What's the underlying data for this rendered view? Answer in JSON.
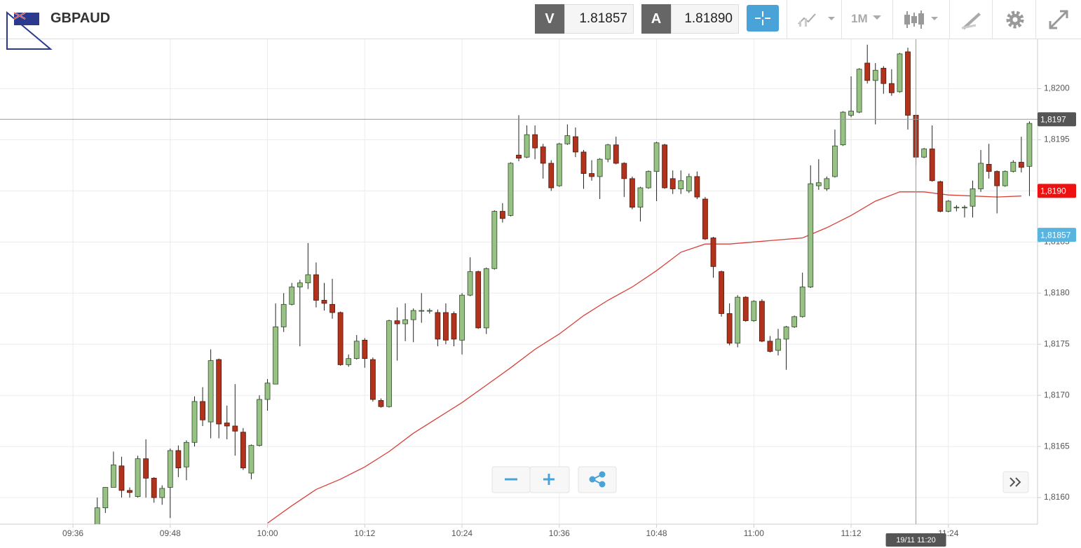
{
  "toolbar": {
    "symbol": "GBPAUD",
    "sell_label": "V",
    "sell_price": "1.81857",
    "buy_label": "A",
    "buy_price": "1.81890",
    "timeframe": "1M"
  },
  "chart_data": {
    "type": "candlestick",
    "x": [
      "09:39",
      "09:40",
      "09:41",
      "09:42",
      "09:43",
      "09:44",
      "09:45",
      "09:46",
      "09:47",
      "09:48",
      "09:49",
      "09:50",
      "09:51",
      "09:52",
      "09:53",
      "09:54",
      "09:55",
      "09:56",
      "09:57",
      "09:58",
      "09:59",
      "10:00",
      "10:01",
      "10:02",
      "10:03",
      "10:04",
      "10:05",
      "10:06",
      "10:07",
      "10:08",
      "10:09",
      "10:10",
      "10:11",
      "10:12",
      "10:13",
      "10:14",
      "10:15",
      "10:16",
      "10:17",
      "10:18",
      "10:19",
      "10:20",
      "10:21",
      "10:22",
      "10:23",
      "10:24",
      "10:25",
      "10:26",
      "10:27",
      "10:28",
      "10:29",
      "10:30",
      "10:31",
      "10:32",
      "10:33",
      "10:34",
      "10:35",
      "10:36",
      "10:37",
      "10:38",
      "10:39",
      "10:40",
      "10:41",
      "10:42",
      "10:43",
      "10:44",
      "10:45",
      "10:46",
      "10:47",
      "10:48",
      "10:49",
      "10:50",
      "10:51",
      "10:52",
      "10:53",
      "10:54",
      "10:55",
      "10:56",
      "10:57",
      "10:58",
      "10:59",
      "11:00",
      "11:01",
      "11:02",
      "11:03",
      "11:04",
      "11:05",
      "11:06",
      "11:07",
      "11:08",
      "11:09",
      "11:10",
      "11:11",
      "11:12",
      "11:13",
      "11:14",
      "11:15",
      "11:16",
      "11:17",
      "11:18",
      "11:19",
      "11:20",
      "11:21",
      "11:22",
      "11:23",
      "11:24",
      "11:25",
      "11:26",
      "11:27",
      "11:28",
      "11:29",
      "11:30",
      "11:31",
      "11:32",
      "11:33",
      "11:34"
    ],
    "open": [
      1.8157,
      1.8159,
      1.8161,
      1.81631,
      1.81607,
      1.81601,
      1.81638,
      1.81619,
      1.816,
      1.8161,
      1.81646,
      1.8163,
      1.81654,
      1.81694,
      1.81674,
      1.81735,
      1.81673,
      1.8167,
      1.81664,
      1.81624,
      1.81651,
      1.81696,
      1.81711,
      1.81767,
      1.81789,
      1.81806,
      1.8181,
      1.81818,
      1.81793,
      1.81789,
      1.81781,
      1.8173,
      1.81736,
      1.81754,
      1.81735,
      1.81695,
      1.81689,
      1.81773,
      1.8177,
      1.81774,
      1.81783,
      1.81783,
      1.81781,
      1.81781,
      1.8178,
      1.81754,
      1.81798,
      1.81821,
      1.81766,
      1.81824,
      1.8188,
      1.81876,
      1.81935,
      1.81933,
      1.81955,
      1.81943,
      1.81927,
      1.81905,
      1.81946,
      1.81953,
      1.81938,
      1.81917,
      1.81914,
      1.81931,
      1.81945,
      1.81927,
      1.81912,
      1.81884,
      1.81903,
      1.81919,
      1.81945,
      1.81912,
      1.81902,
      1.819,
      1.81914,
      1.81892,
      1.81854,
      1.81821,
      1.8178,
      1.81751,
      1.81796,
      1.81773,
      1.81792,
      1.81753,
      1.81744,
      1.81755,
      1.81767,
      1.81777,
      1.81806,
      1.81905,
      1.81902,
      1.81914,
      1.81945,
      1.81974,
      1.81977,
      1.82025,
      1.82008,
      1.8202,
      1.82005,
      1.81997,
      1.82036,
      1.81974,
      1.81933,
      1.81941,
      1.81909,
      1.8188,
      1.81884,
      1.81884,
      1.81885,
      1.81902,
      1.81926,
      1.81919,
      1.81905,
      1.81919,
      1.81928,
      1.81924
    ],
    "high": [
      1.816,
      1.8161,
      1.81645,
      1.8164,
      1.8161,
      1.81641,
      1.81657,
      1.8162,
      1.81612,
      1.81648,
      1.81651,
      1.81656,
      1.81699,
      1.81708,
      1.81745,
      1.81736,
      1.8169,
      1.81711,
      1.81668,
      1.81652,
      1.817,
      1.81716,
      1.8179,
      1.818,
      1.8181,
      1.81813,
      1.81849,
      1.8183,
      1.8181,
      1.81814,
      1.81782,
      1.8174,
      1.81759,
      1.81756,
      1.81737,
      1.81697,
      1.81774,
      1.81786,
      1.8179,
      1.81785,
      1.818,
      1.81785,
      1.81784,
      1.8179,
      1.81782,
      1.818,
      1.81835,
      1.81822,
      1.81825,
      1.81881,
      1.81888,
      1.81928,
      1.81974,
      1.81964,
      1.81964,
      1.81946,
      1.8193,
      1.81947,
      1.81965,
      1.81962,
      1.8194,
      1.8193,
      1.81932,
      1.81946,
      1.81953,
      1.81928,
      1.81914,
      1.81904,
      1.8192,
      1.81948,
      1.81946,
      1.8192,
      1.8192,
      1.81917,
      1.81919,
      1.81894,
      1.81855,
      1.81822,
      1.8179,
      1.81798,
      1.81797,
      1.81793,
      1.81794,
      1.81758,
      1.81765,
      1.81768,
      1.81778,
      1.8182,
      1.81925,
      1.81931,
      1.81914,
      1.8196,
      1.81978,
      1.82012,
      1.8202,
      1.82043,
      1.82025,
      1.82022,
      1.82019,
      1.82035,
      1.8204,
      1.81975,
      1.81942,
      1.81964,
      1.8191,
      1.81891,
      1.81886,
      1.81886,
      1.8191,
      1.8194,
      1.81946,
      1.8192,
      1.8192,
      1.8193,
      1.81953,
      1.81968
    ],
    "low": [
      1.8157,
      1.81585,
      1.8161,
      1.816,
      1.816,
      1.816,
      1.816,
      1.81595,
      1.81593,
      1.8158,
      1.8162,
      1.81617,
      1.8165,
      1.8167,
      1.81658,
      1.81658,
      1.81657,
      1.81641,
      1.81627,
      1.81618,
      1.8165,
      1.81685,
      1.81711,
      1.81762,
      1.81788,
      1.81748,
      1.81804,
      1.81786,
      1.81783,
      1.81775,
      1.81729,
      1.81728,
      1.81735,
      1.81727,
      1.81694,
      1.81688,
      1.81688,
      1.81734,
      1.81753,
      1.81752,
      1.81771,
      1.8178,
      1.81748,
      1.8175,
      1.81748,
      1.8174,
      1.81797,
      1.81765,
      1.8176,
      1.81823,
      1.81869,
      1.81875,
      1.81929,
      1.81932,
      1.81931,
      1.81912,
      1.819,
      1.81904,
      1.81945,
      1.81933,
      1.81902,
      1.8191,
      1.81892,
      1.81928,
      1.81926,
      1.81894,
      1.81882,
      1.8187,
      1.81902,
      1.8189,
      1.81902,
      1.81897,
      1.81897,
      1.81898,
      1.81892,
      1.81852,
      1.81815,
      1.81777,
      1.81749,
      1.81747,
      1.81772,
      1.81772,
      1.81752,
      1.81742,
      1.81739,
      1.81725,
      1.81766,
      1.81776,
      1.81805,
      1.81901,
      1.819,
      1.81913,
      1.81944,
      1.81972,
      1.81976,
      1.82005,
      1.81965,
      1.81995,
      1.81993,
      1.81996,
      1.8196,
      1.81925,
      1.81932,
      1.81909,
      1.81879,
      1.81879,
      1.8188,
      1.81874,
      1.81874,
      1.81899,
      1.81912,
      1.81878,
      1.81904,
      1.81918,
      1.81918,
      1.81895
    ],
    "close": [
      1.8159,
      1.8161,
      1.81632,
      1.81607,
      1.81605,
      1.81638,
      1.81619,
      1.816,
      1.81609,
      1.81646,
      1.81629,
      1.81654,
      1.81694,
      1.81676,
      1.81734,
      1.81672,
      1.8167,
      1.81665,
      1.81629,
      1.81651,
      1.81696,
      1.81712,
      1.81767,
      1.81789,
      1.81806,
      1.8181,
      1.81818,
      1.81793,
      1.8179,
      1.81781,
      1.8173,
      1.81736,
      1.81753,
      1.81736,
      1.81696,
      1.81689,
      1.81773,
      1.8177,
      1.81774,
      1.81783,
      1.81783,
      1.81783,
      1.81755,
      1.81754,
      1.81755,
      1.81798,
      1.81821,
      1.81766,
      1.81824,
      1.8188,
      1.81873,
      1.81927,
      1.81932,
      1.81955,
      1.81942,
      1.81927,
      1.81903,
      1.81946,
      1.81954,
      1.81938,
      1.81917,
      1.81914,
      1.81931,
      1.81945,
      1.81927,
      1.81912,
      1.81884,
      1.81903,
      1.81919,
      1.81947,
      1.81903,
      1.81902,
      1.8191,
      1.81914,
      1.81894,
      1.81853,
      1.81826,
      1.8178,
      1.81751,
      1.81796,
      1.81773,
      1.81792,
      1.81753,
      1.81743,
      1.81755,
      1.81767,
      1.81777,
      1.81806,
      1.81907,
      1.81908,
      1.81912,
      1.81944,
      1.81977,
      1.81978,
      1.82019,
      1.82008,
      1.82018,
      1.82005,
      1.81996,
      1.82034,
      1.81974,
      1.81933,
      1.81941,
      1.8191,
      1.8188,
      1.8189,
      1.81884,
      1.81884,
      1.81902,
      1.81927,
      1.81919,
      1.81905,
      1.81919,
      1.81928,
      1.81923,
      1.81966
    ],
    "up_color": "#97c283",
    "down_color": "#b3321b",
    "overlays": [
      {
        "color": "#d9403a",
        "x": [
          "10:00",
          "10:03",
          "10:06",
          "10:09",
          "10:12",
          "10:15",
          "10:18",
          "10:21",
          "10:24",
          "10:27",
          "10:30",
          "10:33",
          "10:36",
          "10:39",
          "10:42",
          "10:45",
          "10:48",
          "10:51",
          "10:54",
          "10:57",
          "11:00",
          "11:03",
          "11:06",
          "11:09",
          "11:12",
          "11:15",
          "11:18",
          "11:21",
          "11:24",
          "11:27",
          "11:30",
          "11:33"
        ],
        "values": [
          1.81575,
          1.81592,
          1.81608,
          1.81618,
          1.8163,
          1.81645,
          1.81663,
          1.81678,
          1.81693,
          1.8171,
          1.81727,
          1.81745,
          1.8176,
          1.81778,
          1.81793,
          1.81806,
          1.81822,
          1.8184,
          1.81848,
          1.81848,
          1.8185,
          1.81852,
          1.81854,
          1.81864,
          1.81876,
          1.8189,
          1.81899,
          1.81899,
          1.81896,
          1.81895,
          1.81894,
          1.81895
        ]
      }
    ],
    "xlim": [
      "09:27",
      "11:35"
    ],
    "xticks": [
      "09:36",
      "09:48",
      "10:00",
      "10:12",
      "10:24",
      "10:36",
      "10:48",
      "11:00",
      "11:12",
      "11:24"
    ],
    "ylim": [
      1.81574,
      1.82049
    ],
    "yticks": [
      {
        "value": 1.816,
        "label": "1,8160"
      },
      {
        "value": 1.8165,
        "label": "1,8165"
      },
      {
        "value": 1.817,
        "label": "1,8170"
      },
      {
        "value": 1.8175,
        "label": "1,8175"
      },
      {
        "value": 1.818,
        "label": "1,8180"
      },
      {
        "value": 1.8185,
        "label": "1,8185"
      },
      {
        "value": 1.819,
        "label": "1,8190"
      },
      {
        "value": 1.8195,
        "label": "1,8195"
      },
      {
        "value": 1.82,
        "label": "1,8200"
      }
    ],
    "grid": true,
    "price_tags": [
      {
        "value": 1.8197,
        "label": "1,8197",
        "color": "#555555",
        "line": true
      },
      {
        "value": 1.819,
        "label": "1,8190",
        "color": "#ee1111",
        "line": false
      },
      {
        "value": 1.81857,
        "label": "1,81857",
        "color": "#5ab4e0",
        "line": false
      }
    ],
    "crosshair": {
      "x": "11:20",
      "label": "19/11 11:20"
    }
  }
}
